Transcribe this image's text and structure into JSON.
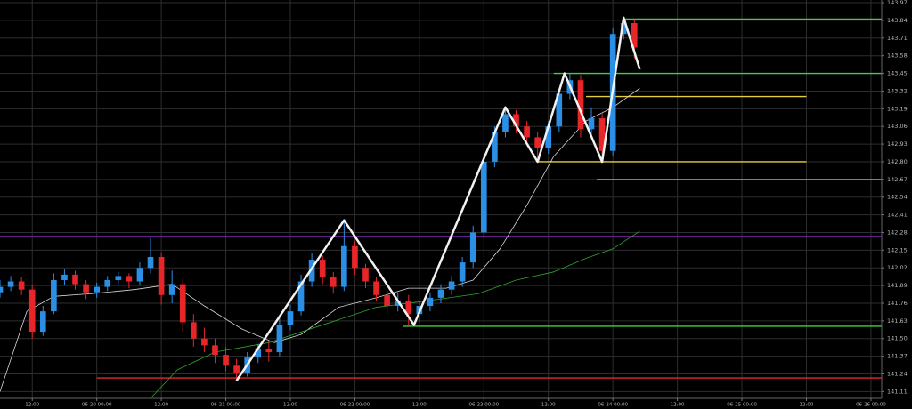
{
  "chart_data": {
    "type": "candlestick",
    "up_color": "#2b8fe6",
    "down_color": "#e8262a",
    "grid": true,
    "x": [
      "06-19 06:00",
      "06-19 08:00",
      "06-19 10:00",
      "06-19 12:00",
      "06-19 14:00",
      "06-19 16:00",
      "06-19 18:00",
      "06-19 20:00",
      "06-19 22:00",
      "06-20 00:00",
      "06-20 02:00",
      "06-20 04:00",
      "06-20 06:00",
      "06-20 08:00",
      "06-20 10:00",
      "06-20 12:00",
      "06-20 14:00",
      "06-20 16:00",
      "06-20 18:00",
      "06-20 20:00",
      "06-20 22:00",
      "06-21 00:00",
      "06-21 02:00",
      "06-21 04:00",
      "06-21 06:00",
      "06-21 08:00",
      "06-21 10:00",
      "06-21 12:00",
      "06-21 14:00",
      "06-21 16:00",
      "06-21 18:00",
      "06-21 20:00",
      "06-21 22:00",
      "06-22 00:00",
      "06-22 02:00",
      "06-22 04:00",
      "06-22 06:00",
      "06-22 08:00",
      "06-22 10:00",
      "06-22 12:00",
      "06-22 14:00",
      "06-22 16:00",
      "06-22 18:00",
      "06-22 20:00",
      "06-22 22:00",
      "06-23 00:00",
      "06-23 02:00",
      "06-23 04:00",
      "06-23 06:00",
      "06-23 08:00",
      "06-23 10:00",
      "06-23 12:00",
      "06-23 14:00",
      "06-23 16:00",
      "06-23 18:00",
      "06-23 20:00",
      "06-23 22:00",
      "06-24 00:00",
      "06-24 02:00",
      "06-24 04:00"
    ],
    "open": [
      141.84,
      141.88,
      141.92,
      141.86,
      141.55,
      141.7,
      141.93,
      141.97,
      141.9,
      141.84,
      141.88,
      141.93,
      141.96,
      141.92,
      142.02,
      142.1,
      141.82,
      141.9,
      141.62,
      141.5,
      141.45,
      141.38,
      141.3,
      141.25,
      141.36,
      141.42,
      141.4,
      141.6,
      141.7,
      141.92,
      142.08,
      141.95,
      141.88,
      142.18,
      142.02,
      141.92,
      141.82,
      141.74,
      141.78,
      141.68,
      141.74,
      141.8,
      141.86,
      141.92,
      142.06,
      142.28,
      142.8,
      143.02,
      143.15,
      143.06,
      142.98,
      142.9,
      143.06,
      143.3,
      143.4,
      143.04,
      143.12,
      142.88,
      143.74,
      143.82
    ],
    "high": [
      141.93,
      141.96,
      141.95,
      141.89,
      141.74,
      141.98,
      142.01,
      142.0,
      141.93,
      141.91,
      141.96,
      141.99,
      141.98,
      142.06,
      142.24,
      142.13,
      142.0,
      141.94,
      141.68,
      141.58,
      141.5,
      141.44,
      141.35,
      141.4,
      141.46,
      141.48,
      141.65,
      141.75,
      141.97,
      142.13,
      142.11,
      141.99,
      142.37,
      142.22,
      142.05,
      141.95,
      141.86,
      141.84,
      141.82,
      141.78,
      141.84,
      141.9,
      141.96,
      142.1,
      142.33,
      142.85,
      143.06,
      143.2,
      143.18,
      143.1,
      143.02,
      143.1,
      143.34,
      143.45,
      143.44,
      143.2,
      143.16,
      143.78,
      143.86,
      143.84
    ],
    "low": [
      141.8,
      141.85,
      141.82,
      141.5,
      141.52,
      141.68,
      141.89,
      141.86,
      141.79,
      141.8,
      141.85,
      141.9,
      141.87,
      141.89,
      141.98,
      141.75,
      141.76,
      141.55,
      141.44,
      141.4,
      141.32,
      141.26,
      141.2,
      141.22,
      141.32,
      141.33,
      141.37,
      141.56,
      141.67,
      141.88,
      141.9,
      141.83,
      141.85,
      141.97,
      141.87,
      141.78,
      141.68,
      141.7,
      141.6,
      141.62,
      141.7,
      141.76,
      141.82,
      141.88,
      142.02,
      142.24,
      142.76,
      142.98,
      143.01,
      142.92,
      142.8,
      142.86,
      143.02,
      143.26,
      142.98,
      143.0,
      142.8,
      142.84,
      143.7,
      143.56
    ],
    "close": [
      141.88,
      141.92,
      141.86,
      141.55,
      141.7,
      141.93,
      141.97,
      141.9,
      141.84,
      141.88,
      141.93,
      141.96,
      141.92,
      142.02,
      142.1,
      141.82,
      141.9,
      141.62,
      141.5,
      141.45,
      141.38,
      141.3,
      141.25,
      141.36,
      141.42,
      141.4,
      141.6,
      141.7,
      141.92,
      142.08,
      141.95,
      141.88,
      142.18,
      142.02,
      141.92,
      141.82,
      141.74,
      141.78,
      141.68,
      141.74,
      141.8,
      141.86,
      141.92,
      142.06,
      142.28,
      142.8,
      143.02,
      143.15,
      143.06,
      142.98,
      142.9,
      143.06,
      143.3,
      143.4,
      143.04,
      143.12,
      142.88,
      143.74,
      143.82,
      143.64
    ],
    "lines": [
      {
        "color": "#d8d8d8",
        "x": [
          "06-19 06:00",
          "06-19 11:00",
          "06-19 16:00",
          "06-19 23:00",
          "06-20 07:00",
          "06-20 14:00",
          "06-20 20:00",
          "06-21 03:00",
          "06-21 09:00",
          "06-21 14:00",
          "06-21 21:00",
          "06-22 04:00",
          "06-22 10:00",
          "06-22 17:00",
          "06-22 22:00",
          "06-23 03:00",
          "06-23 08:00",
          "06-23 13:00",
          "06-23 19:00",
          "06-24 00:00",
          "06-24 05:00"
        ],
        "values": [
          141.11,
          141.7,
          141.81,
          141.83,
          141.86,
          141.9,
          141.74,
          141.57,
          141.47,
          141.53,
          141.73,
          141.8,
          141.87,
          141.87,
          141.93,
          142.16,
          142.48,
          142.84,
          143.1,
          143.2,
          143.34
        ]
      },
      {
        "color": "#2fa52f",
        "x": [
          "06-20 10:00",
          "06-20 15:00",
          "06-20 22:00",
          "06-21 08:00",
          "06-21 18:00",
          "06-22 04:00",
          "06-22 14:00",
          "06-22 23:00",
          "06-23 06:00",
          "06-23 13:00",
          "06-23 19:00",
          "06-24 00:00",
          "06-24 05:00"
        ],
        "values": [
          141.06,
          141.27,
          141.4,
          141.47,
          141.6,
          141.73,
          141.78,
          141.83,
          141.93,
          141.99,
          142.09,
          142.16,
          142.29
        ]
      }
    ],
    "zigzag": {
      "color": "#f2f2f2",
      "x": [
        "06-21 02:00",
        "06-21 22:00",
        "06-22 11:00",
        "06-23 04:00",
        "06-23 10:00",
        "06-23 15:00",
        "06-23 22:00",
        "06-24 02:00",
        "06-24 05:00"
      ],
      "values": [
        141.19,
        142.37,
        141.6,
        143.2,
        142.8,
        143.45,
        142.8,
        143.86,
        143.48
      ]
    },
    "levels": [
      {
        "value": 142.25,
        "color": "#9b30d9"
      },
      {
        "value": 141.21,
        "color": "#e0282c",
        "from": "06-20 00:00"
      },
      {
        "value": 143.85,
        "color": "#3fcf3f",
        "from": "06-24 02:00"
      },
      {
        "value": 143.45,
        "color": "#3fcf3f",
        "from": "06-23 13:00"
      },
      {
        "value": 142.67,
        "color": "#3fcf3f",
        "from": "06-23 21:00"
      },
      {
        "value": 141.59,
        "color": "#3fcf3f",
        "from": "06-22 09:00"
      },
      {
        "value": 143.28,
        "color": "#e6cf3a",
        "from": "06-23 19:00",
        "to": "06-25 12:00"
      },
      {
        "value": 142.8,
        "color": "#e6cf3a",
        "from": "06-23 10:00",
        "to": "06-25 12:00"
      }
    ],
    "xlim": [
      "06-19 06:00",
      "06-26 02:00"
    ],
    "xticks": [
      {
        "value": "06-19 12:00",
        "label": "12:00"
      },
      "06-20 00:00",
      {
        "value": "06-20 12:00",
        "label": "12:00"
      },
      "06-21 00:00",
      {
        "value": "06-21 12:00",
        "label": "12:00"
      },
      "06-22 00:00",
      {
        "value": "06-22 12:00",
        "label": "12:00"
      },
      "06-23 00:00",
      {
        "value": "06-23 12:00",
        "label": "12:00"
      },
      "06-24 00:00",
      {
        "value": "06-24 12:00",
        "label": "12:00"
      },
      "06-25 00:00",
      {
        "value": "06-25 12:00",
        "label": "12:00"
      },
      "06-26 00:00"
    ],
    "ylim": [
      141.06,
      143.99
    ],
    "yticks": [
      143.97,
      143.84,
      143.71,
      143.58,
      143.45,
      143.32,
      143.19,
      143.06,
      142.93,
      {
        "value": 142.8,
        "label": "142.80"
      },
      142.67,
      142.54,
      142.41,
      142.28,
      142.15,
      142.02,
      141.89,
      141.76,
      141.63,
      {
        "value": 141.5,
        "label": "141.50"
      },
      141.37,
      141.24,
      141.11
    ]
  }
}
